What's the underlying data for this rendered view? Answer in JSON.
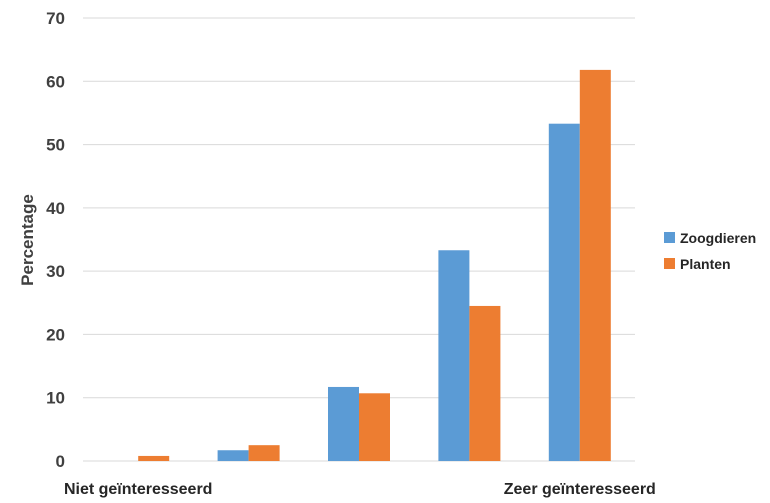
{
  "chart_data": {
    "type": "bar",
    "categories": [
      "Niet geïnteresseerd",
      "",
      "",
      "",
      "Zeer geïnteresseerd"
    ],
    "series": [
      {
        "name": "Zoogdieren",
        "values": [
          0,
          1.7,
          11.7,
          33.3,
          53.3
        ],
        "color": "#5B9BD5"
      },
      {
        "name": "Planten",
        "values": [
          0.8,
          2.5,
          10.7,
          24.5,
          61.8
        ],
        "color": "#ED7D31"
      }
    ],
    "ylabel": "Percentage",
    "ylim": [
      0,
      70
    ],
    "yticks": [
      "0",
      "10",
      "20",
      "30",
      "40",
      "50",
      "60",
      "70"
    ],
    "grid": true,
    "legend": "right"
  }
}
